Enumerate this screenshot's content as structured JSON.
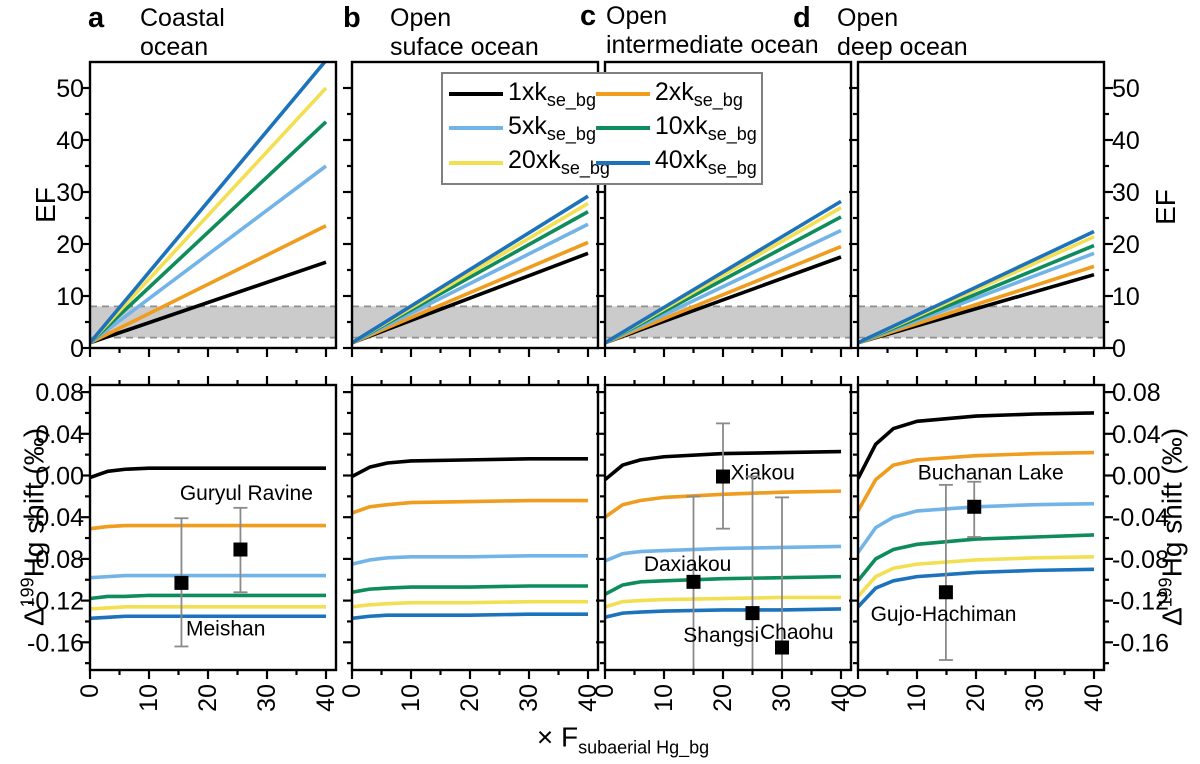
{
  "figure": {
    "panels": [
      {
        "letter": "a",
        "title_line1": "Coastal",
        "title_line2": "ocean"
      },
      {
        "letter": "b",
        "title_line1": "Open",
        "title_line2": "suface ocean"
      },
      {
        "letter": "c",
        "title_line1": "Open",
        "title_line2": "intermediate ocean"
      },
      {
        "letter": "d",
        "title_line1": "Open",
        "title_line2": "deep ocean"
      }
    ],
    "y_axis_top_label": "EF",
    "y_axis_bottom_delta": "Δ",
    "y_axis_bottom_sup": "199",
    "y_axis_bottom_rest": "Hg shift (‰)",
    "x_axis_label_pre": "× F",
    "x_axis_label_sub": "subaerial Hg_bg"
  },
  "legend": {
    "items": [
      {
        "pre": "1xk",
        "sub": "se_bg",
        "color": "#000000"
      },
      {
        "pre": "2xk",
        "sub": "se_bg",
        "color": "#F09C1E"
      },
      {
        "pre": "5xk",
        "sub": "se_bg",
        "color": "#73B4E8"
      },
      {
        "pre": "10xk",
        "sub": "se_bg",
        "color": "#0E8C5B"
      },
      {
        "pre": "20xk",
        "sub": "se_bg",
        "color": "#F2DF52"
      },
      {
        "pre": "40xk",
        "sub": "se_bg",
        "color": "#1C73BB"
      }
    ]
  },
  "chart_data": {
    "type": "line",
    "x_label": "× F_subaerial Hg_bg",
    "x_ticks": [
      0,
      10,
      20,
      30,
      40
    ],
    "x_minor_ticks": [
      5,
      15,
      25,
      35
    ],
    "series_names": [
      "1xk_se_bg",
      "2xk_se_bg",
      "5xk_se_bg",
      "10xk_se_bg",
      "20xk_se_bg",
      "40xk_se_bg"
    ],
    "top_row": {
      "ylabel": "EF",
      "ylim": [
        0,
        55
      ],
      "yticks": [
        0,
        10,
        20,
        30,
        40,
        50
      ],
      "yminor": [
        5,
        15,
        25,
        35,
        45
      ],
      "grey_band": {
        "lo": 2,
        "hi": 8
      },
      "ef_at_x0": 1,
      "panels": [
        {
          "name": "Coastal ocean",
          "ef_at_x40": [
            16.5,
            23.5,
            35.0,
            43.5,
            50.0,
            55.3
          ]
        },
        {
          "name": "Open suface ocean",
          "ef_at_x40": [
            18.2,
            20.3,
            23.8,
            26.2,
            27.8,
            29.2
          ]
        },
        {
          "name": "Open intermediate ocean",
          "ef_at_x40": [
            17.5,
            19.5,
            22.6,
            25.2,
            27.0,
            28.2
          ]
        },
        {
          "name": "Open deep ocean",
          "ef_at_x40": [
            14.1,
            15.7,
            18.2,
            19.7,
            21.4,
            22.4
          ]
        }
      ]
    },
    "bottom_row": {
      "ylabel": "Δ199Hg shift (‰)",
      "ylim": [
        -0.187,
        0.087
      ],
      "yticks": [
        0.08,
        0.04,
        0,
        -0.04,
        -0.08,
        -0.12,
        -0.16
      ],
      "yminor": [
        0.06,
        0.02,
        -0.02,
        -0.06,
        -0.1,
        -0.14,
        -0.18
      ],
      "x": [
        0,
        3,
        6,
        10,
        20,
        30,
        40
      ],
      "panels": [
        {
          "name": "Coastal ocean",
          "series_y": [
            [
              -0.002,
              0.004,
              0.006,
              0.007,
              0.007,
              0.007,
              0.007
            ],
            [
              -0.051,
              -0.049,
              -0.048,
              -0.048,
              -0.048,
              -0.048,
              -0.048
            ],
            [
              -0.098,
              -0.097,
              -0.096,
              -0.096,
              -0.096,
              -0.096,
              -0.096
            ],
            [
              -0.118,
              -0.116,
              -0.116,
              -0.115,
              -0.115,
              -0.115,
              -0.115
            ],
            [
              -0.128,
              -0.127,
              -0.126,
              -0.126,
              -0.126,
              -0.126,
              -0.126
            ],
            [
              -0.137,
              -0.136,
              -0.135,
              -0.135,
              -0.135,
              -0.135,
              -0.135
            ]
          ],
          "sites": [
            {
              "label": "Guryul Ravine",
              "x": 25.5,
              "y": -0.071,
              "err_top": -0.031,
              "err_bot": -0.112,
              "cap_top": true,
              "cap_bot": true,
              "label_x": 26.5,
              "label_y": -0.016,
              "anchor": "middle"
            },
            {
              "label": "Meishan",
              "x": 15.5,
              "y": -0.103,
              "err_top": -0.041,
              "err_bot": -0.164,
              "cap_top": true,
              "cap_bot": true,
              "label_x": 23,
              "label_y": -0.146,
              "anchor": "middle"
            }
          ]
        },
        {
          "name": "Open suface ocean",
          "series_y": [
            [
              -0.001,
              0.008,
              0.012,
              0.014,
              0.015,
              0.016,
              0.016
            ],
            [
              -0.036,
              -0.03,
              -0.028,
              -0.026,
              -0.025,
              -0.024,
              -0.024
            ],
            [
              -0.085,
              -0.081,
              -0.079,
              -0.078,
              -0.078,
              -0.077,
              -0.077
            ],
            [
              -0.112,
              -0.109,
              -0.108,
              -0.107,
              -0.107,
              -0.106,
              -0.106
            ],
            [
              -0.126,
              -0.124,
              -0.123,
              -0.122,
              -0.122,
              -0.121,
              -0.121
            ],
            [
              -0.137,
              -0.135,
              -0.134,
              -0.134,
              -0.134,
              -0.133,
              -0.133
            ]
          ],
          "sites": []
        },
        {
          "name": "Open intermediate ocean",
          "series_y": [
            [
              -0.004,
              0.01,
              0.015,
              0.018,
              0.021,
              0.022,
              0.023
            ],
            [
              -0.04,
              -0.028,
              -0.024,
              -0.021,
              -0.018,
              -0.016,
              -0.015
            ],
            [
              -0.082,
              -0.075,
              -0.073,
              -0.072,
              -0.07,
              -0.069,
              -0.068
            ],
            [
              -0.114,
              -0.105,
              -0.102,
              -0.101,
              -0.099,
              -0.098,
              -0.097
            ],
            [
              -0.126,
              -0.121,
              -0.12,
              -0.119,
              -0.118,
              -0.117,
              -0.117
            ],
            [
              -0.136,
              -0.132,
              -0.131,
              -0.13,
              -0.129,
              -0.129,
              -0.128
            ]
          ],
          "sites": [
            {
              "label": "Xiakou",
              "x": 20,
              "y": -0.001,
              "err_top": 0.05,
              "err_bot": -0.051,
              "cap_top": true,
              "cap_bot": true,
              "label_x": 21.3,
              "label_y": 0.004,
              "anchor": "start"
            },
            {
              "label": "Daxiakou",
              "x": 15,
              "y": -0.102,
              "err_top": -0.02,
              "err_bot": -0.186,
              "cap_top": true,
              "cap_bot": false,
              "label_x": 14,
              "label_y": -0.084,
              "anchor": "middle"
            },
            {
              "label": "Shangsi",
              "x": 25,
              "y": -0.132,
              "err_top": -0.001,
              "err_bot": -0.186,
              "cap_top": true,
              "cap_bot": false,
              "label_x": 19.7,
              "label_y": -0.152,
              "anchor": "middle"
            },
            {
              "label": "Chaohu",
              "x": 30,
              "y": -0.165,
              "err_top": -0.021,
              "err_bot": -0.186,
              "cap_top": true,
              "cap_bot": false,
              "label_x": 32.5,
              "label_y": -0.149,
              "anchor": "middle"
            }
          ]
        },
        {
          "name": "Open deep ocean",
          "series_y": [
            [
              -0.003,
              0.03,
              0.045,
              0.052,
              0.057,
              0.059,
              0.06
            ],
            [
              -0.034,
              -0.004,
              0.01,
              0.015,
              0.019,
              0.021,
              0.022
            ],
            [
              -0.074,
              -0.05,
              -0.04,
              -0.034,
              -0.03,
              -0.028,
              -0.027
            ],
            [
              -0.101,
              -0.08,
              -0.071,
              -0.066,
              -0.061,
              -0.059,
              -0.057
            ],
            [
              -0.116,
              -0.097,
              -0.089,
              -0.085,
              -0.081,
              -0.079,
              -0.078
            ],
            [
              -0.126,
              -0.108,
              -0.101,
              -0.097,
              -0.093,
              -0.091,
              -0.09
            ]
          ],
          "sites": [
            {
              "label": "Buchanan Lake",
              "x": 19.7,
              "y": -0.03,
              "err_top": -0.006,
              "err_bot": -0.059,
              "cap_top": true,
              "cap_bot": true,
              "label_x": 22.5,
              "label_y": 0.004,
              "anchor": "middle"
            },
            {
              "label": "Gujo-Hachiman",
              "x": 14.9,
              "y": -0.112,
              "err_top": -0.009,
              "err_bot": -0.177,
              "cap_top": true,
              "cap_bot": true,
              "label_x": 14.5,
              "label_y": -0.132,
              "anchor": "middle"
            }
          ]
        }
      ]
    },
    "style": {
      "band_fill": "#CBCBCB",
      "band_dash_color": "#8F8F8F",
      "error_bar_color": "#8A8A8A",
      "marker_color": "#000000"
    }
  }
}
